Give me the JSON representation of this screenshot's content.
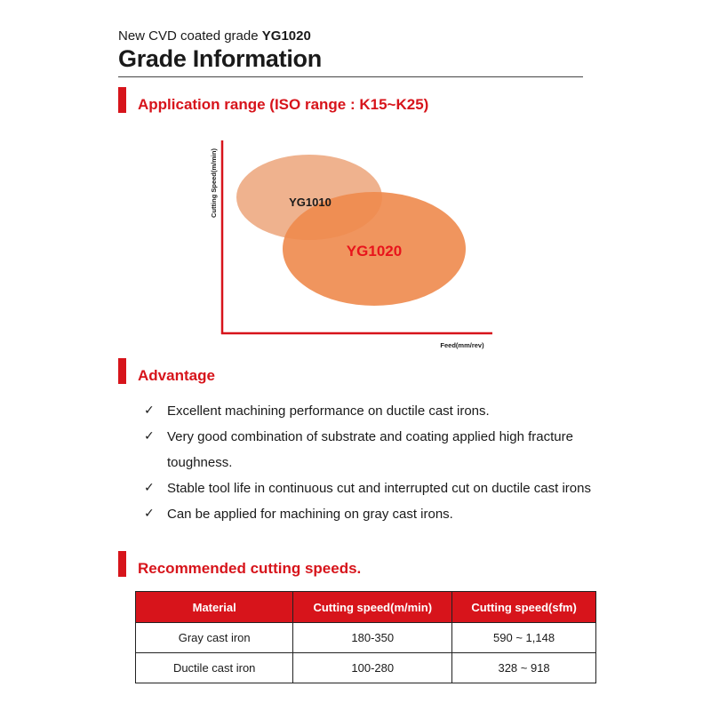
{
  "header": {
    "subtitle_prefix": "New CVD coated grade",
    "subtitle_grade": "YG1020",
    "title": "Grade Information"
  },
  "sections": {
    "application": "Application range (ISO range : K15~K25)",
    "advantage": "Advantage",
    "recommended": "Recommended cutting speeds."
  },
  "application_chart": {
    "y_axis_label": "Cutting Speed(m/min)",
    "x_axis_label": "Feed(mm/rev)",
    "grades": [
      {
        "label": "YG1010",
        "color": "#efb28e",
        "label_color": "#1a1a1a"
      },
      {
        "label": "YG1020",
        "color": "#ee8a4d",
        "label_color": "#e8141c"
      }
    ],
    "axis_color": "#d7141b"
  },
  "advantages": [
    "Excellent machining performance on ductile cast irons.",
    "Very good combination of substrate and coating applied high fracture toughness.",
    "Stable tool life in continuous cut and interrupted cut on ductile cast irons",
    "Can be applied for machining on gray cast irons."
  ],
  "check_glyph": "✓",
  "speeds_table": {
    "headers": [
      "Material",
      "Cutting speed(m/min)",
      "Cutting speed(sfm)"
    ],
    "rows": [
      [
        "Gray cast iron",
        "180-350",
        "590 ~ 1,148"
      ],
      [
        "Ductile cast iron",
        "100-280",
        "328 ~ 918"
      ]
    ]
  },
  "colors": {
    "accent_red": "#d7141b"
  }
}
